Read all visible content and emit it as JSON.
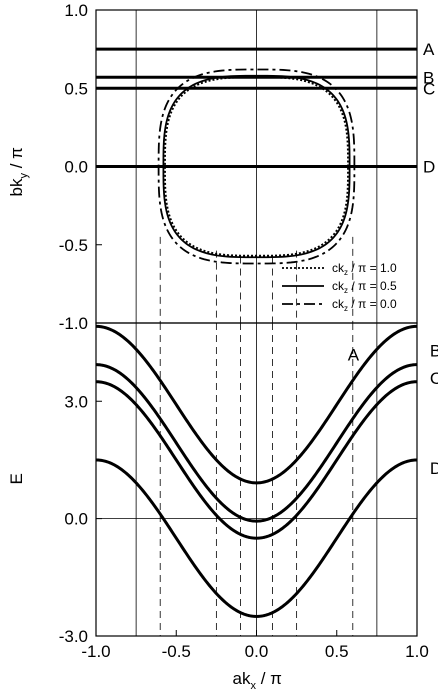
{
  "chart_data": [
    {
      "type": "line",
      "panel": "top",
      "xlim": [
        -1.0,
        1.0
      ],
      "ylim": [
        -1.0,
        1.0
      ],
      "ylabel_main": "bk",
      "ylabel_sub": "y",
      "ylabel_tail": " / π",
      "yticks": [
        1.0,
        0.5,
        0.0,
        -0.5,
        -1.0
      ],
      "ytick_labels": [
        "1.0",
        "0.5",
        "0.0",
        "-0.5",
        "-1.0"
      ],
      "ytick_precision": 1,
      "horizontal_lines": [
        {
          "label": "A",
          "y": 0.75
        },
        {
          "label": "B",
          "y": 0.57
        },
        {
          "label": "C",
          "y": 0.5
        },
        {
          "label": "D",
          "y": 0.0
        }
      ],
      "contours": [
        {
          "kz": "1.0",
          "style": "dotted",
          "kx_max": 0.57,
          "ky_max": 0.57
        },
        {
          "kz": "0.5",
          "style": "solid",
          "kx_max": 0.58,
          "ky_max": 0.58
        },
        {
          "kz": "0.0",
          "style": "dashdot",
          "kx_max": 0.61,
          "ky_max": 0.62
        }
      ],
      "legend": {
        "placement": "bottom-right",
        "entries": [
          {
            "style": "dotted",
            "main": "ck",
            "sub": "z",
            "tail": " / π = 1.0"
          },
          {
            "style": "solid",
            "main": "ck",
            "sub": "z",
            "tail": " / π = 0.5"
          },
          {
            "style": "dashdot",
            "main": "ck",
            "sub": "z",
            "tail": " / π = 0.0"
          }
        ]
      }
    },
    {
      "type": "line",
      "panel": "bottom",
      "xlim": [
        -1.0,
        1.0
      ],
      "ylim": [
        -3.0,
        5.0
      ],
      "xlabel_main": "ak",
      "xlabel_sub": "x",
      "xlabel_tail": " / π",
      "ylabel": "E",
      "xticks": [
        -1.0,
        -0.5,
        0.0,
        0.5,
        1.0
      ],
      "xtick_labels": [
        "-1.0",
        "-0.5",
        "0.0",
        "0.5",
        "1.0"
      ],
      "yticks": [
        3.0,
        0.0,
        -3.0
      ],
      "ytick_labels": [
        "3.0",
        "0.0",
        "-3.0"
      ],
      "reference_x": [
        -0.75,
        0.0,
        0.75
      ],
      "reference_y": [
        0.0
      ],
      "dashed_x": [
        -0.6,
        -0.25,
        -0.1,
        0.1,
        0.25,
        0.6
      ],
      "band_center": 1.5,
      "band_amplitude": 2.0,
      "series": [
        {
          "name": "A",
          "ky": 0.75
        },
        {
          "name": "B",
          "ky": 0.57
        },
        {
          "name": "C",
          "ky": 0.5
        },
        {
          "name": "D",
          "ky": 0.0
        }
      ],
      "series_labels": [
        {
          "text": "A",
          "x": 0.6,
          "y": 4.2
        },
        {
          "text": "B",
          "x": 1.08,
          "y": 4.3
        },
        {
          "text": "C",
          "x": 1.08,
          "y": 3.6
        },
        {
          "text": "D",
          "x": 1.08,
          "y": 1.3
        }
      ]
    }
  ]
}
